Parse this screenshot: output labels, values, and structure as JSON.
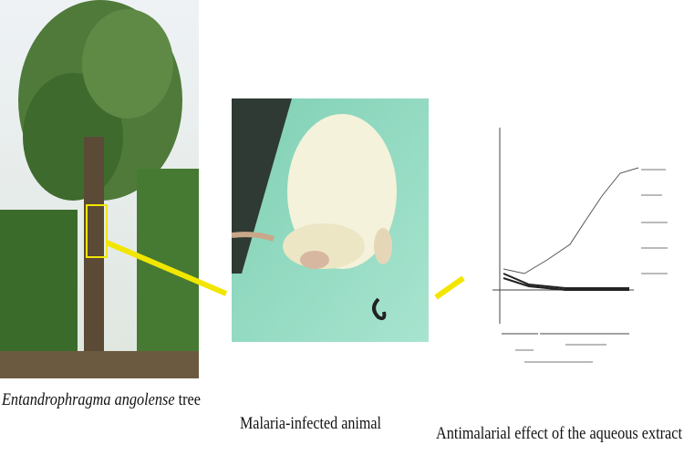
{
  "panels": {
    "tree": {
      "caption_species": "Entandrophragma angolense",
      "caption_suffix": "tree"
    },
    "animal": {
      "caption": "Malaria-infected animal"
    },
    "effect": {
      "caption": "Antimalarial effect of the aqueous extract"
    }
  }
}
